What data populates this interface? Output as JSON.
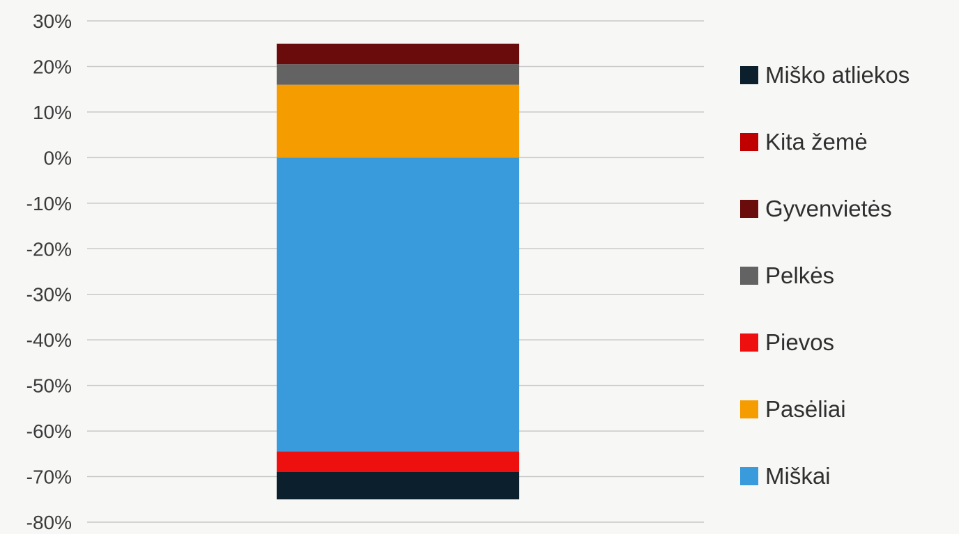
{
  "chart_data": {
    "type": "bar",
    "stacked": true,
    "title": "",
    "xlabel": "",
    "ylabel": "",
    "ylim": [
      -80,
      30
    ],
    "yticks": [
      30,
      20,
      10,
      0,
      -10,
      -20,
      -30,
      -40,
      -50,
      -60,
      -70,
      -80
    ],
    "ytick_labels": [
      "30%",
      "20%",
      "10%",
      "0%",
      "-10%",
      "-20%",
      "-30%",
      "-40%",
      "-50%",
      "-60%",
      "-70%",
      "-80%"
    ],
    "grid": true,
    "legend_position": "right",
    "series": [
      {
        "name": "Miškai",
        "color": "#3a9bdc",
        "value": -64.5
      },
      {
        "name": "Pasėliai",
        "color": "#f59c00",
        "value": 16.0
      },
      {
        "name": "Pievos",
        "color": "#ee0f0f",
        "value": -4.5
      },
      {
        "name": "Pelkės",
        "color": "#636363",
        "value": 4.5
      },
      {
        "name": "Gyvenvietės",
        "color": "#6b0c0c",
        "value": 4.5
      },
      {
        "name": "Kita žemė",
        "color": "#c00000",
        "value": 0
      },
      {
        "name": "Miško atliekos",
        "color": "#0c1f2c",
        "value": -6.0
      }
    ],
    "legend_order": [
      "Miško atliekos",
      "Kita žemė",
      "Gyvenvietės",
      "Pelkės",
      "Pievos",
      "Pasėliai",
      "Miškai"
    ]
  }
}
